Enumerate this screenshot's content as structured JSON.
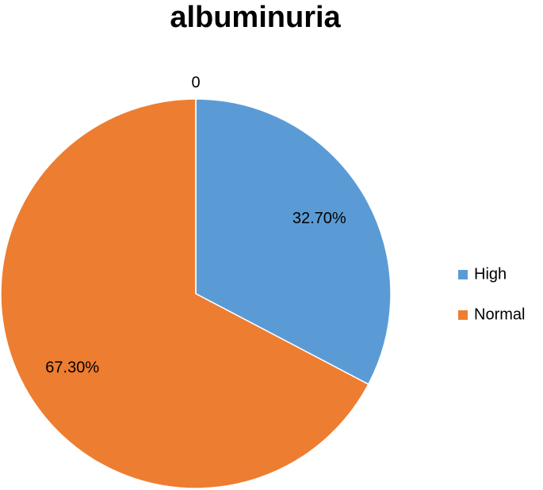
{
  "chart_data": {
    "type": "pie",
    "title": "albuminuria",
    "categories": [
      "High",
      "Normal",
      null
    ],
    "values": [
      32.7,
      67.3,
      0
    ],
    "value_labels": [
      "32.70%",
      "67.30%",
      "0"
    ],
    "colors": [
      "#5b9bd5",
      "#ed7d31"
    ],
    "legend": "right"
  }
}
